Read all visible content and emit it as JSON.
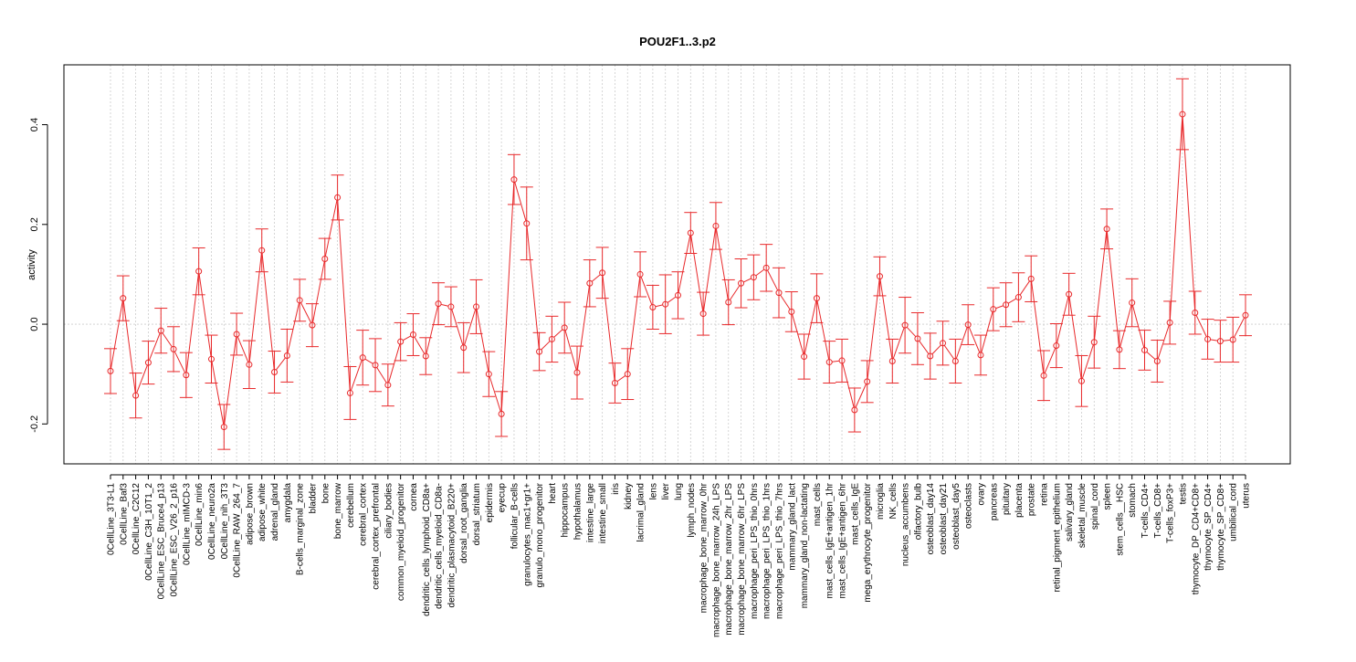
{
  "chart_data": {
    "type": "line",
    "title": "POU2F1..3.p2",
    "xlabel": "",
    "ylabel": "activity",
    "ylim": [
      -0.28,
      0.52
    ],
    "yticks": [
      -0.2,
      0.0,
      0.2,
      0.4
    ],
    "ytick_labels": [
      "-0.2",
      "0.0",
      "0.2",
      "0.4"
    ],
    "grid": true,
    "legend": "none",
    "colors": {
      "series": "#e8292b",
      "grid": "#cccccc",
      "frame": "#000000"
    },
    "categories": [
      "0CellLine_3T3-L1",
      "0CellLine_Baf3",
      "0CellLine_C2C12",
      "0CellLine_C3H_10T1_2",
      "0CellLine_ESC_Bruce4_p13",
      "0CellLine_ESC_V26_2_p16",
      "0CellLine_mIMCD-3",
      "0CellLine_min6",
      "0CellLine_neuro2a",
      "0CellLine_nih_3T3",
      "0CellLine_RAW_264_7",
      "adipose_brown",
      "adipose_white",
      "adrenal_gland",
      "amygdala",
      "B-cells_marginal_zone",
      "bladder",
      "bone",
      "bone_marrow",
      "cerebellum",
      "cerebral_cortex",
      "cerebral_cortex_prefrontal",
      "ciliary_bodies",
      "common_myeloid_progenitor",
      "cornea",
      "dendritic_cells_lymphoid_CD8a+",
      "dendritic_cells_myeloid_CD8a-",
      "dendritic_plasmacytoid_B220+",
      "dorsal_root_ganglia",
      "dorsal_striatum",
      "epidermis",
      "eyecup",
      "follicular_B-cells",
      "granulocytes_mac1+gr1+",
      "granulo_mono_progenitor",
      "heart",
      "hippocampus",
      "hypothalamus",
      "intestine_large",
      "intestine_small",
      "iris",
      "kidney",
      "lacrimal_gland",
      "lens",
      "liver",
      "lung",
      "lymph_nodes",
      "macrophage_bone_marrow_0hr",
      "macrophage_bone_marrow_24h_LPS",
      "macrophage_bone_marrow_2hr_LPS",
      "macrophage_bone_marrow_6hr_LPS",
      "macrophage_peri_LPS_thio_0hrs",
      "macrophage_peri_LPS_thio_1hrs",
      "macrophage_peri_LPS_thio_7hrs",
      "mammary_gland_lact",
      "mammary_gland_non-lactating",
      "mast_cells",
      "mast_cells_IgE+antigen_1hr",
      "mast_cells_IgE+antigen_6hr",
      "mast_cells_IgE",
      "mega_erythrocyte_progenitor",
      "microglia",
      "NK_cells",
      "nucleus_accumbens",
      "olfactory_bulb",
      "osteoblast_day14",
      "osteoblast_day21",
      "osteoblast_day5",
      "osteoclasts",
      "ovary",
      "pancreas",
      "pituitary",
      "placenta",
      "prostate",
      "retina",
      "retinal_pigment_epithelium",
      "salivary_gland",
      "skeletal_muscle",
      "spinal_cord",
      "spleen",
      "stem_cells__HSC",
      "stomach",
      "T-cells_CD4+",
      "T-cells_CD8+",
      "T-cells_foxP3+",
      "testis",
      "thymocyte_DP_CD4+CD8+",
      "thymocyte_SP_CD4+",
      "thymocyte_SP_CD8+",
      "umbilical_cord",
      "uterus"
    ],
    "series": [
      {
        "values": [
          -0.094,
          0.052,
          -0.143,
          -0.077,
          -0.013,
          -0.05,
          -0.102,
          0.106,
          -0.07,
          -0.206,
          -0.02,
          -0.081,
          0.148,
          -0.096,
          -0.063,
          0.048,
          -0.002,
          0.131,
          0.254,
          -0.138,
          -0.067,
          -0.082,
          -0.122,
          -0.035,
          -0.021,
          -0.064,
          0.041,
          0.035,
          -0.047,
          0.035,
          -0.1,
          -0.18,
          0.29,
          0.202,
          -0.055,
          -0.03,
          -0.007,
          -0.097,
          0.082,
          0.103,
          -0.118,
          -0.1,
          0.1,
          0.034,
          0.04,
          0.058,
          0.183,
          0.021,
          0.197,
          0.044,
          0.082,
          0.094,
          0.113,
          0.063,
          0.025,
          -0.065,
          0.052,
          -0.076,
          -0.073,
          -0.172,
          -0.115,
          0.096,
          -0.074,
          -0.002,
          -0.029,
          -0.064,
          -0.038,
          -0.074,
          -0.001,
          -0.062,
          0.03,
          0.039,
          0.054,
          0.091,
          -0.103,
          -0.043,
          0.06,
          -0.114,
          -0.036,
          0.191,
          -0.051,
          0.043,
          -0.052,
          -0.074,
          0.003,
          0.421,
          0.023,
          -0.03,
          -0.034,
          -0.031,
          0.018
        ],
        "errors": [
          0.045,
          0.045,
          0.045,
          0.043,
          0.045,
          0.045,
          0.045,
          0.047,
          0.048,
          0.045,
          0.042,
          0.048,
          0.043,
          0.042,
          0.053,
          0.042,
          0.043,
          0.041,
          0.045,
          0.053,
          0.055,
          0.053,
          0.042,
          0.038,
          0.042,
          0.037,
          0.042,
          0.04,
          0.05,
          0.054,
          0.045,
          0.045,
          0.05,
          0.073,
          0.038,
          0.046,
          0.051,
          0.053,
          0.047,
          0.051,
          0.04,
          0.051,
          0.045,
          0.044,
          0.059,
          0.047,
          0.041,
          0.043,
          0.047,
          0.045,
          0.049,
          0.045,
          0.047,
          0.05,
          0.04,
          0.045,
          0.049,
          0.042,
          0.043,
          0.044,
          0.042,
          0.039,
          0.044,
          0.056,
          0.052,
          0.046,
          0.044,
          0.044,
          0.04,
          0.04,
          0.043,
          0.044,
          0.049,
          0.046,
          0.05,
          0.044,
          0.042,
          0.051,
          0.052,
          0.04,
          0.038,
          0.048,
          0.04,
          0.042,
          0.043,
          0.071,
          0.043,
          0.04,
          0.042,
          0.045,
          0.041
        ]
      }
    ]
  }
}
